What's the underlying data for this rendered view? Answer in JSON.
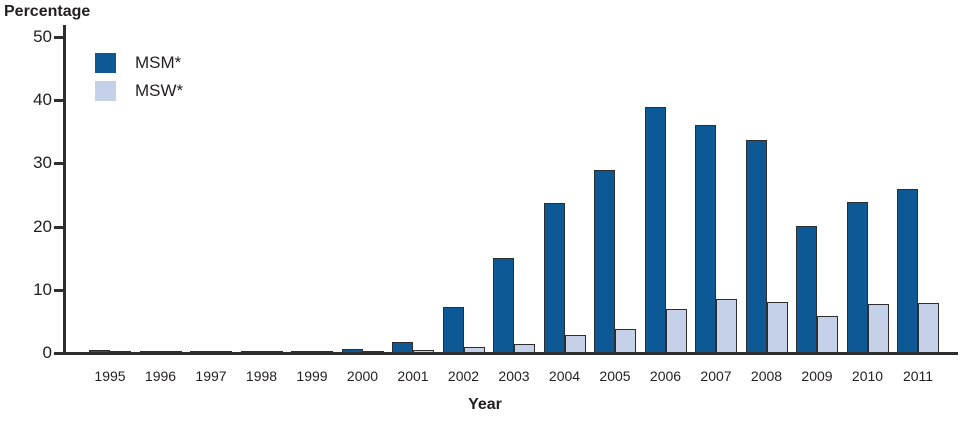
{
  "chart_data": {
    "type": "bar",
    "title": "",
    "ylabel": "Percentage",
    "xlabel": "Year",
    "ylim": [
      0,
      50
    ],
    "y_ticks": [
      0,
      10,
      20,
      30,
      40,
      50
    ],
    "grid": false,
    "legend_position": "top-left",
    "categories": [
      "1995",
      "1996",
      "1997",
      "1998",
      "1999",
      "2000",
      "2001",
      "2002",
      "2003",
      "2004",
      "2005",
      "2006",
      "2007",
      "2008",
      "2009",
      "2010",
      "2011"
    ],
    "series": [
      {
        "name": "MSM*",
        "color": "#0d5996",
        "values": [
          0.4,
          0.2,
          0.3,
          0.1,
          0.3,
          0.6,
          1.7,
          7.2,
          15.0,
          23.8,
          29.0,
          38.9,
          36.1,
          33.7,
          20.1,
          23.9,
          26.0
        ]
      },
      {
        "name": "MSW*",
        "color": "#c5d1e8",
        "values": [
          0.1,
          0.1,
          0.2,
          0.1,
          0.3,
          0.2,
          0.5,
          1.0,
          1.5,
          2.8,
          3.8,
          7.0,
          8.6,
          8.1,
          5.9,
          7.8,
          7.9
        ]
      }
    ],
    "bar_outline_color": "#2e2e2e"
  },
  "colors": {
    "axis": "#2e2e2e",
    "text": "#231f20",
    "background": "#ffffff"
  }
}
